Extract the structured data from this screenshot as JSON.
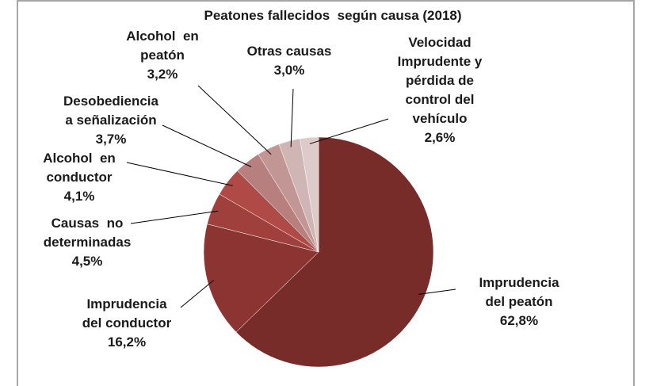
{
  "chart_data": {
    "type": "pie",
    "title": "Peatones fallecidos  según causa (2018)",
    "categories": [
      "Imprudencia\ndel peatón",
      "Imprudencia\ndel conductor",
      "Causas  no\ndeterminadas",
      "Alcohol  en\nconductor",
      "Desobediencia\na señalización",
      "Alcohol  en\npeatón",
      "Otras causas",
      "Velocidad\nImprudente y\npérdida de\ncontrol del\nvehículo"
    ],
    "values": [
      62.8,
      16.2,
      4.5,
      4.1,
      3.7,
      3.2,
      3.0,
      2.6
    ],
    "value_labels": [
      "62,8%",
      "16,2%",
      "4,5%",
      "4,1%",
      "3,7%",
      "3,2%",
      "3,0%",
      "2,6%"
    ],
    "colors": [
      "#772c2a",
      "#8b3431",
      "#a0403c",
      "#b04a46",
      "#b77f7d",
      "#c29694",
      "#cfb5b4",
      "#ddcbcb"
    ]
  }
}
